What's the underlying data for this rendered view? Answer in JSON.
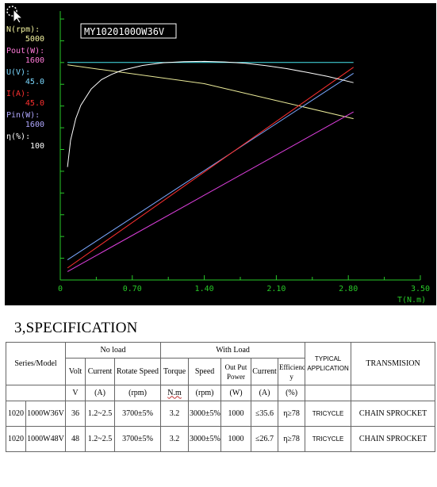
{
  "chart_data": {
    "type": "line",
    "model_label": "MY1020100OW36V",
    "x_axis": {
      "label": "T(N.m)",
      "ticks": [
        "0",
        "0.70",
        "1.40",
        "2.10",
        "2.80",
        "3.50"
      ],
      "range": [
        0,
        3.5
      ]
    },
    "legend": [
      {
        "name": "N(rpm):",
        "max": "5000",
        "color": "#f4f4a0"
      },
      {
        "name": "Pout(W):",
        "max": "1600",
        "color": "#ff7ad8"
      },
      {
        "name": "U(V):",
        "max": "45.0",
        "color": "#7ad8ff"
      },
      {
        "name": "I(A):",
        "max": "45.0",
        "color": "#ff3030"
      },
      {
        "name": "Pin(W):",
        "max": "1600",
        "color": "#b0a8ff"
      },
      {
        "name": "η(%):",
        "max": "100",
        "color": "#ffffff"
      }
    ],
    "series": [
      {
        "name": "N(rpm):",
        "color": "#ecec9a",
        "x": [
          0.07,
          1.4,
          2.85
        ],
        "y": [
          4000,
          3650,
          3000
        ],
        "max": 5000
      },
      {
        "name": "U(V):",
        "color": "#48e8f0",
        "x": [
          0.07,
          2.85
        ],
        "y": [
          36.4,
          36.4
        ],
        "max": 45
      },
      {
        "name": "Pin(W):",
        "color": "#7aa8ff",
        "x": [
          0.07,
          2.85
        ],
        "y": [
          120,
          1230
        ],
        "max": 1600
      },
      {
        "name": "I(A):",
        "color": "#ff3030",
        "x": [
          0.07,
          2.85
        ],
        "y": [
          2.0,
          35.6
        ],
        "max": 45
      },
      {
        "name": "Pout(W):",
        "color": "#e040e0",
        "x": [
          0.07,
          2.85
        ],
        "y": [
          50,
          1000
        ],
        "max": 1600
      },
      {
        "name": "η(%):",
        "color": "#ffffff",
        "x": [
          0.07,
          0.1,
          0.15,
          0.2,
          0.3,
          0.4,
          0.5,
          0.6,
          0.8,
          1.0,
          1.2,
          1.4,
          1.6,
          1.8,
          2.0,
          2.2,
          2.4,
          2.6,
          2.85
        ],
        "y": [
          42,
          52,
          60,
          65,
          71,
          74.5,
          76.5,
          78,
          79.8,
          80.8,
          81.2,
          81.3,
          81.1,
          80.6,
          79.7,
          78.6,
          77.2,
          75.7,
          73.4
        ],
        "max": 100
      }
    ],
    "grid": false
  },
  "spec": {
    "heading": "3,SPECIFICATION",
    "groups": {
      "no_load": "No load",
      "with_load": "With Load"
    },
    "headers": {
      "series_model": "Series/Model",
      "volt": "Volt",
      "current": "Current",
      "rotate_speed": "Rotate Speed",
      "torque": "Torque",
      "speed": "Speed",
      "out_put_power": "Out Put Power",
      "load_current": "Current",
      "efficiency": "Efficienc y",
      "typical_application": "TYPICAL APPLICATION",
      "transmision": "TRANSMISION"
    },
    "units": {
      "volt": "V",
      "current": "(A)",
      "rotate_speed": "(rpm)",
      "torque": "N.m",
      "speed": "(rpm)",
      "power": "(W)",
      "load_current": "(A)",
      "efficiency": "(%)"
    },
    "rows": [
      {
        "series": "1020",
        "model": "1000W36V",
        "volt": "36",
        "current": "1.2~2.5",
        "rotate_speed": "3700±5%",
        "torque": "3.2",
        "speed": "3000±5%",
        "power": "1000",
        "load_current": "≤35.6",
        "efficiency": "η≥78",
        "application": "TRICYCLE",
        "transmision": "CHAIN SPROCKET"
      },
      {
        "series": "1020",
        "model": "1000W48V",
        "volt": "48",
        "current": "1.2~2.5",
        "rotate_speed": "3700±5%",
        "torque": "3.2",
        "speed": "3000±5%",
        "power": "1000",
        "load_current": "≤26.7",
        "efficiency": "η≥78",
        "application": "TRICYCLE",
        "transmision": "CHAIN SPROCKET"
      }
    ]
  }
}
